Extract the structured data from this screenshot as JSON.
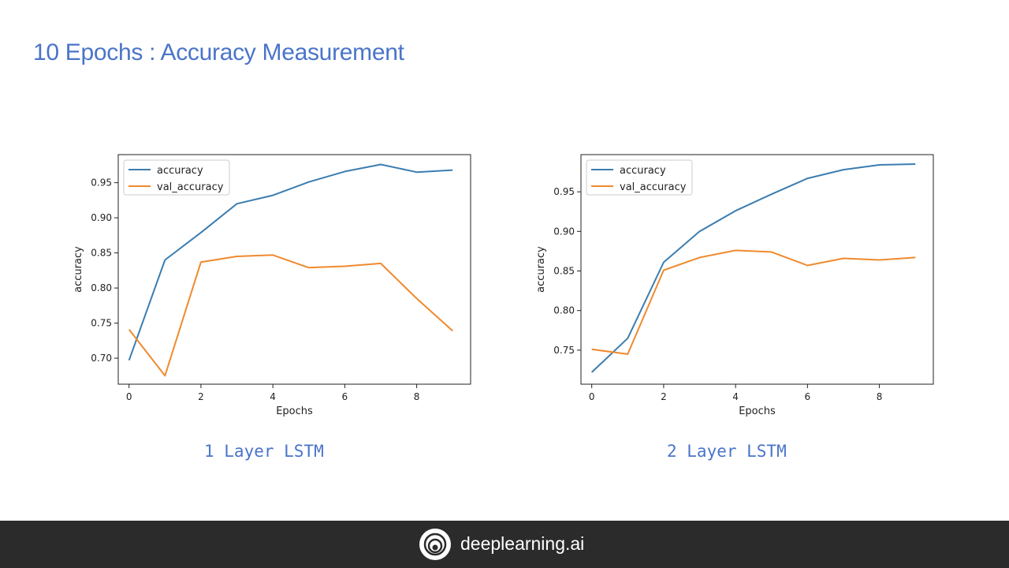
{
  "slide": {
    "title": "10 Epochs : Accuracy Measurement"
  },
  "colors": {
    "accent": "#4a74c9",
    "series_accuracy": "#3b7db0",
    "series_val_accuracy": "#ef8a2e",
    "footer_bg": "#2b2b2b"
  },
  "captions": [
    "1 Layer LSTM",
    "2 Layer LSTM"
  ],
  "footer": {
    "brand": "deeplearning.ai",
    "logo_icon": "deeplearning-logo-icon"
  },
  "chart_data": [
    {
      "type": "line",
      "xlabel": "Epochs",
      "ylabel": "accuracy",
      "x": [
        0,
        1,
        2,
        3,
        4,
        5,
        6,
        7,
        8,
        9
      ],
      "xlim": [
        -0.3,
        9.5
      ],
      "ylim": [
        0.663,
        0.99
      ],
      "xticks": [
        0,
        2,
        4,
        6,
        8
      ],
      "yticks": [
        0.7,
        0.75,
        0.8,
        0.85,
        0.9,
        0.95
      ],
      "legend": "top-left",
      "grid": false,
      "series": [
        {
          "name": "accuracy",
          "color": "#3b7db0",
          "values": [
            0.697,
            0.84,
            0.879,
            0.92,
            0.932,
            0.951,
            0.966,
            0.976,
            0.965,
            0.968
          ]
        },
        {
          "name": "val_accuracy",
          "color": "#ef8a2e",
          "values": [
            0.741,
            0.675,
            0.837,
            0.845,
            0.847,
            0.829,
            0.831,
            0.835,
            0.785,
            0.739
          ]
        }
      ]
    },
    {
      "type": "line",
      "xlabel": "Epochs",
      "ylabel": "accuracy",
      "x": [
        0,
        1,
        2,
        3,
        4,
        5,
        6,
        7,
        8,
        9
      ],
      "xlim": [
        -0.3,
        9.5
      ],
      "ylim": [
        0.707,
        0.997
      ],
      "xticks": [
        0,
        2,
        4,
        6,
        8
      ],
      "yticks": [
        0.75,
        0.8,
        0.85,
        0.9,
        0.95
      ],
      "legend": "top-left",
      "grid": false,
      "series": [
        {
          "name": "accuracy",
          "color": "#3b7db0",
          "values": [
            0.722,
            0.765,
            0.861,
            0.9,
            0.926,
            0.947,
            0.967,
            0.978,
            0.984,
            0.985
          ]
        },
        {
          "name": "val_accuracy",
          "color": "#ef8a2e",
          "values": [
            0.751,
            0.745,
            0.851,
            0.867,
            0.876,
            0.874,
            0.857,
            0.866,
            0.864,
            0.867
          ]
        }
      ]
    }
  ]
}
